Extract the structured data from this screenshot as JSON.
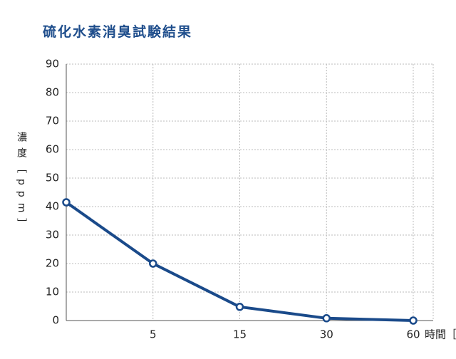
{
  "chart_data": {
    "type": "line",
    "title": "硫化水素消臭試験結果",
    "y_label": "濃度［ppm］",
    "x_label": "時間［分］",
    "categories": [
      null,
      "5",
      "15",
      "30",
      "60"
    ],
    "series": [
      {
        "name": "硫化水素",
        "color": "#1a4a8a",
        "values": [
          41.5,
          20,
          4.8,
          0.8,
          0
        ]
      }
    ],
    "ylim": [
      0,
      90
    ],
    "yticks": [
      0,
      10,
      20,
      30,
      40,
      50,
      60,
      70,
      80,
      90
    ],
    "grid": true
  }
}
